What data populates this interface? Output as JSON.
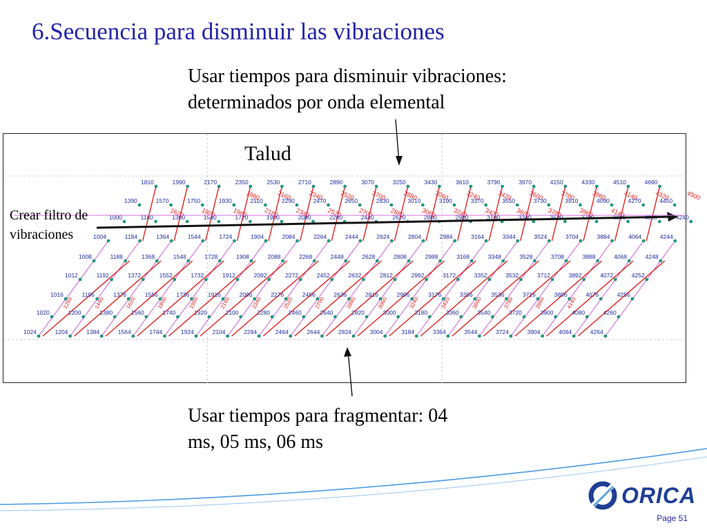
{
  "title": "6.Secuencia para disminuir las vibraciones",
  "caption_top": [
    "Usar tiempos para disminuir vibraciones:",
    "determinados por onda elemental"
  ],
  "caption_bottom": [
    "Usar tiempos para fragmentar: 04",
    "ms, 05 ms, 06 ms"
  ],
  "label_talud": "Talud",
  "label_filter": [
    "Crear filtro de",
    "vibraciones"
  ],
  "logo_text": "ORICA",
  "page_number": "Page 51",
  "colors": {
    "title": "#2323a8",
    "delay_lines": "#e0201e",
    "echelon_lines": "#c85cd2",
    "hole_labels": "#1e2aa0",
    "hole_marker": "#18a58c",
    "logo": "#1f3f95"
  },
  "chart_data": {
    "type": "blast-timing-grid",
    "rows": [
      {
        "row": 1,
        "hole_times_ms": [
          1810,
          1990,
          2170,
          2350,
          2530,
          2710,
          2890,
          3070,
          3250,
          3430,
          3610,
          3790,
          3970,
          4150,
          4330,
          4510,
          4690
        ]
      },
      {
        "row": 2,
        "hole_times_ms": [
          1390,
          1570,
          1750,
          1930,
          2110,
          2290,
          2470,
          2650,
          2830,
          3010,
          3190,
          3370,
          3550,
          3730,
          3910,
          4090,
          4270,
          4450
        ]
      },
      {
        "row": 3,
        "hole_times_ms": [
          1000,
          1180,
          1360,
          1540,
          1720,
          1900,
          2080,
          2260,
          2440,
          2620,
          2800,
          2980,
          3160,
          3340,
          3520,
          3700,
          3880,
          4060,
          4240
        ]
      },
      {
        "row": 4,
        "hole_times_ms": [
          1004,
          1184,
          1364,
          1544,
          1724,
          1904,
          2084,
          2264,
          2444,
          2624,
          2804,
          2984,
          3164,
          3344,
          3524,
          3704,
          3884,
          4064,
          4244
        ]
      },
      {
        "row": 5,
        "hole_times_ms": [
          1008,
          1188,
          1368,
          1548,
          1728,
          1908,
          2088,
          2268,
          2448,
          2628,
          2808,
          2988,
          3168,
          3348,
          3528,
          3708,
          3888,
          4068,
          4248
        ]
      },
      {
        "row": 6,
        "hole_times_ms": [
          1012,
          1192,
          1372,
          1552,
          1732,
          1912,
          2092,
          2272,
          2452,
          2632,
          2812,
          2992,
          3172,
          3352,
          3532,
          3712,
          3892,
          4072,
          4252
        ]
      },
      {
        "row": 7,
        "hole_times_ms": [
          1016,
          1196,
          1376,
          1556,
          1736,
          1916,
          2096,
          2276,
          2456,
          2636,
          2816,
          2996,
          3176,
          3356,
          3536,
          3716,
          3896,
          4076,
          4256
        ]
      },
      {
        "row": 8,
        "hole_times_ms": [
          1020,
          1200,
          1380,
          1560,
          1740,
          1920,
          2100,
          2280,
          2460,
          2640,
          2820,
          3000,
          3180,
          3360,
          3540,
          3720,
          3900,
          4080,
          4260
        ]
      },
      {
        "row": 9,
        "hole_times_ms": [
          1024,
          1204,
          1384,
          1564,
          1744,
          1924,
          2104,
          2284,
          2464,
          2644,
          2824,
          3004,
          3184,
          3364,
          3544,
          3724,
          3904,
          4084,
          4264
        ]
      }
    ],
    "row_delay_labels_ms": [
      1620,
      1800,
      1980,
      2160,
      2340,
      2520,
      2700,
      2880,
      3060,
      3240,
      3420,
      3600,
      3780,
      3960,
      4140
    ],
    "front_delay_labels_ms": [
      1980,
      2160,
      2340,
      2520,
      2700,
      2880,
      3060,
      3240,
      3420,
      3600,
      3780,
      3960,
      4140,
      4320,
      4500
    ],
    "echelon_delay_labels_ms": [
      1260,
      1440,
      1620,
      1800,
      1980,
      2160,
      2340,
      2520,
      2700,
      2880,
      3060,
      3240,
      3420,
      3600,
      3780,
      3960,
      4140
    ]
  }
}
